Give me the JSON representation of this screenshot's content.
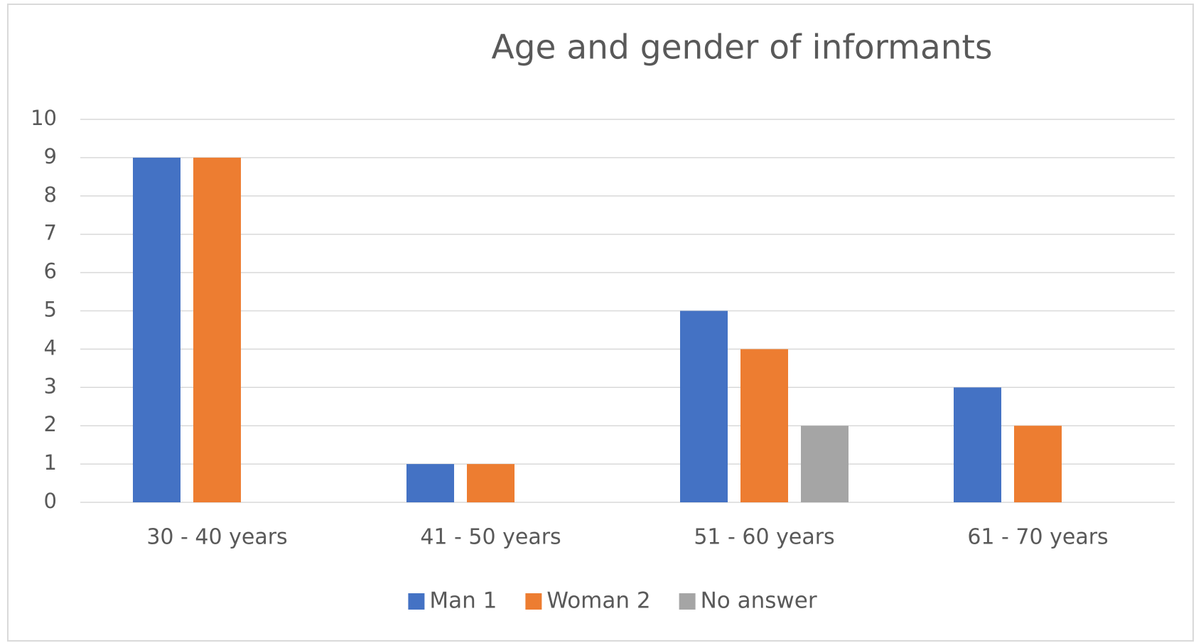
{
  "chart_data": {
    "type": "bar",
    "title": "Age and gender of informants",
    "categories": [
      "30 - 40 years",
      "41 - 50 years",
      "51 - 60 years",
      "61 - 70 years"
    ],
    "series": [
      {
        "name": "Man 1",
        "color": "#4472c4",
        "values": [
          9,
          1,
          5,
          3
        ]
      },
      {
        "name": "Woman 2",
        "color": "#ed7d31",
        "values": [
          9,
          1,
          4,
          2
        ]
      },
      {
        "name": "No answer",
        "color": "#a5a5a5",
        "values": [
          null,
          null,
          2,
          null
        ]
      }
    ],
    "ylim": [
      0,
      10
    ],
    "yticks": [
      0,
      1,
      2,
      3,
      4,
      5,
      6,
      7,
      8,
      9,
      10
    ],
    "grid": true,
    "legend": "bottom"
  }
}
